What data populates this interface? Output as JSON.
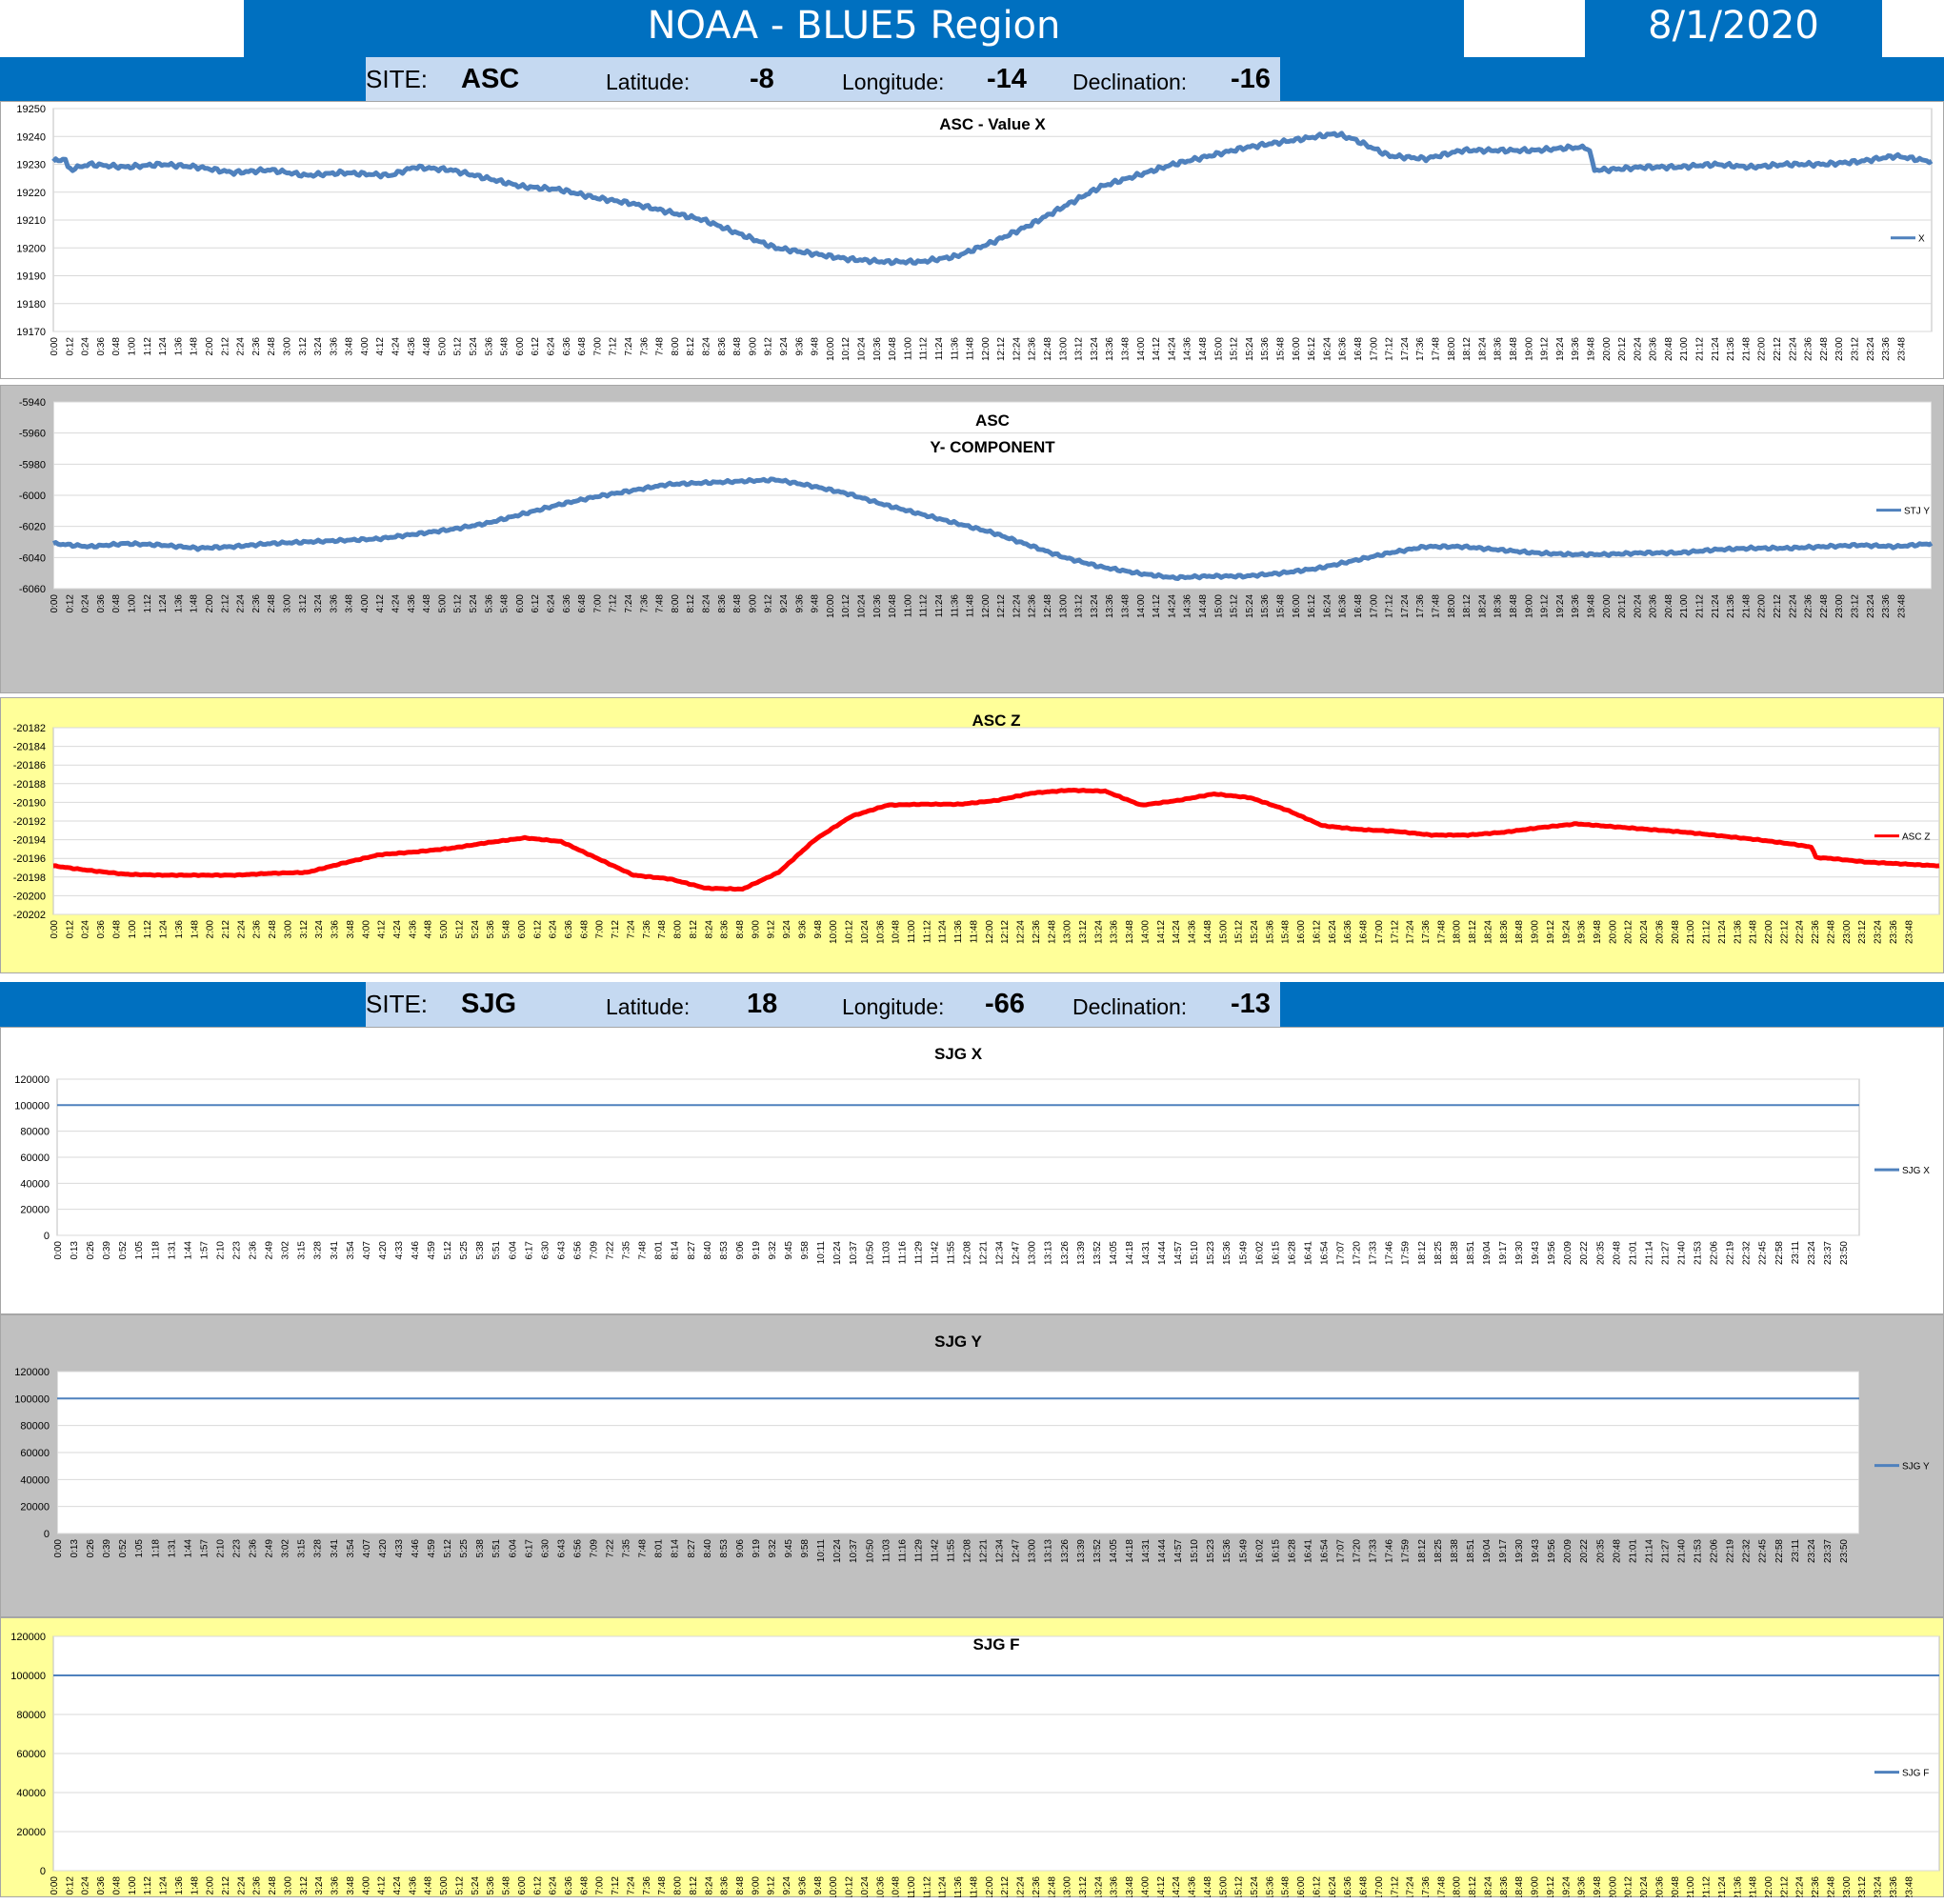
{
  "header": {
    "title": "NOAA - BLUE5 Region",
    "date": "8/1/2020"
  },
  "colors": {
    "header_blue": "#0070C0",
    "site_box": "#C5D9F1",
    "series_blue": "#4F81BD",
    "series_red": "#FF0000",
    "panel_gray": "#C0C0C0",
    "panel_yellow": "#FFFF99"
  },
  "sites": [
    {
      "site_label": "SITE:",
      "site": "ASC",
      "lat_label": "Latitude:",
      "lat": "-8",
      "lon_label": "Longitude:",
      "lon": "-14",
      "dec_label": "Declination:",
      "dec": "-16"
    },
    {
      "site_label": "SITE:",
      "site": "SJG",
      "lat_label": "Latitude:",
      "lat": "18",
      "lon_label": "Longitude:",
      "lon": "-66",
      "dec_label": "Declination:",
      "dec": "-13"
    }
  ],
  "chart_data": [
    {
      "type": "line",
      "title": "ASC - Value X",
      "legend": "X",
      "color": "#4F81BD",
      "ylim": [
        19170,
        19250
      ],
      "yticks": [
        19250,
        19240,
        19230,
        19220,
        19210,
        19200,
        19190,
        19180,
        19170
      ],
      "x_start_min": 0,
      "x_step_min": 12,
      "keypoints": [
        [
          0,
          19231
        ],
        [
          20,
          19232
        ],
        [
          25,
          19228
        ],
        [
          60,
          19230
        ],
        [
          120,
          19229
        ],
        [
          180,
          19230
        ],
        [
          240,
          19229
        ],
        [
          300,
          19227
        ],
        [
          360,
          19228
        ],
        [
          420,
          19226
        ],
        [
          480,
          19227
        ],
        [
          560,
          19226
        ],
        [
          600,
          19229
        ],
        [
          660,
          19228
        ],
        [
          720,
          19225
        ],
        [
          780,
          19222
        ],
        [
          840,
          19221
        ],
        [
          900,
          19218
        ],
        [
          960,
          19216
        ],
        [
          1020,
          19213
        ],
        [
          1080,
          19210
        ],
        [
          1140,
          19205
        ],
        [
          1200,
          19200
        ],
        [
          1260,
          19198
        ],
        [
          1320,
          19196
        ],
        [
          1380,
          19195
        ],
        [
          1440,
          19195
        ],
        [
          1500,
          19197
        ],
        [
          1560,
          19202
        ],
        [
          1620,
          19208
        ],
        [
          1680,
          19215
        ],
        [
          1740,
          19222
        ],
        [
          1800,
          19226
        ],
        [
          1860,
          19230
        ],
        [
          1920,
          19233
        ],
        [
          1980,
          19236
        ],
        [
          2040,
          19238
        ],
        [
          2100,
          19240
        ],
        [
          2130,
          19241
        ],
        [
          2160,
          19239
        ],
        [
          2190,
          19236
        ],
        [
          2220,
          19233
        ],
        [
          2280,
          19232
        ],
        [
          2340,
          19235
        ],
        [
          2400,
          19235
        ],
        [
          2460,
          19235
        ],
        [
          2520,
          19236
        ],
        [
          2550,
          19236
        ],
        [
          2560,
          19228
        ],
        [
          2580,
          19228
        ],
        [
          2640,
          19229
        ],
        [
          2700,
          19229
        ],
        [
          2760,
          19230
        ],
        [
          2820,
          19229
        ],
        [
          2880,
          19230
        ],
        [
          2940,
          19230
        ],
        [
          3000,
          19231
        ],
        [
          3060,
          19233
        ],
        [
          3120,
          19231
        ]
      ]
    },
    {
      "type": "line",
      "title": "ASC",
      "subtitle": "Y- COMPONENT",
      "legend": "STJ Y",
      "color": "#4F81BD",
      "ylim": [
        -6060,
        -5940
      ],
      "yticks": [
        -5940,
        -5960,
        -5980,
        -6000,
        -6020,
        -6040,
        -6060
      ],
      "x_start_min": 0,
      "x_step_min": 12,
      "keypoints": [
        [
          0,
          -6031
        ],
        [
          60,
          -6033
        ],
        [
          120,
          -6031
        ],
        [
          180,
          -6032
        ],
        [
          240,
          -6034
        ],
        [
          300,
          -6033
        ],
        [
          360,
          -6031
        ],
        [
          420,
          -6030
        ],
        [
          480,
          -6029
        ],
        [
          540,
          -6028
        ],
        [
          600,
          -6025
        ],
        [
          660,
          -6022
        ],
        [
          720,
          -6018
        ],
        [
          780,
          -6012
        ],
        [
          840,
          -6006
        ],
        [
          900,
          -6001
        ],
        [
          960,
          -5997
        ],
        [
          1020,
          -5993
        ],
        [
          1080,
          -5992
        ],
        [
          1140,
          -5991
        ],
        [
          1200,
          -5990
        ],
        [
          1260,
          -5994
        ],
        [
          1320,
          -5999
        ],
        [
          1380,
          -6006
        ],
        [
          1440,
          -6012
        ],
        [
          1500,
          -6018
        ],
        [
          1560,
          -6024
        ],
        [
          1620,
          -6032
        ],
        [
          1680,
          -6040
        ],
        [
          1740,
          -6046
        ],
        [
          1800,
          -6050
        ],
        [
          1860,
          -6053
        ],
        [
          1920,
          -6052
        ],
        [
          1980,
          -6052
        ],
        [
          2040,
          -6050
        ],
        [
          2100,
          -6047
        ],
        [
          2160,
          -6042
        ],
        [
          2220,
          -6037
        ],
        [
          2280,
          -6033
        ],
        [
          2340,
          -6033
        ],
        [
          2400,
          -6035
        ],
        [
          2460,
          -6037
        ],
        [
          2520,
          -6038
        ],
        [
          2580,
          -6038
        ],
        [
          2640,
          -6037
        ],
        [
          2700,
          -6037
        ],
        [
          2760,
          -6035
        ],
        [
          2820,
          -6034
        ],
        [
          2880,
          -6034
        ],
        [
          2940,
          -6033
        ],
        [
          3000,
          -6032
        ],
        [
          3060,
          -6033
        ],
        [
          3120,
          -6031
        ]
      ]
    },
    {
      "type": "line",
      "title": "ASC Z",
      "legend": "ASC Z",
      "color": "#FF0000",
      "ylim": [
        -20202,
        -20182
      ],
      "yticks": [
        -20182,
        -20184,
        -20186,
        -20188,
        -20190,
        -20192,
        -20194,
        -20196,
        -20198,
        -20200,
        -20202
      ],
      "x_start_min": 0,
      "x_step_min": 12,
      "keypoints": [
        [
          0,
          -20196.8
        ],
        [
          60,
          -20197.3
        ],
        [
          120,
          -20197.7
        ],
        [
          180,
          -20197.8
        ],
        [
          240,
          -20197.8
        ],
        [
          300,
          -20197.8
        ],
        [
          360,
          -20197.6
        ],
        [
          420,
          -20197.5
        ],
        [
          480,
          -20196.5
        ],
        [
          540,
          -20195.6
        ],
        [
          600,
          -20195.3
        ],
        [
          660,
          -20194.9
        ],
        [
          720,
          -20194.3
        ],
        [
          780,
          -20193.8
        ],
        [
          840,
          -20194.2
        ],
        [
          900,
          -20196
        ],
        [
          960,
          -20197.8
        ],
        [
          1020,
          -20198.2
        ],
        [
          1080,
          -20199.2
        ],
        [
          1140,
          -20199.3
        ],
        [
          1200,
          -20197.5
        ],
        [
          1260,
          -20194
        ],
        [
          1320,
          -20191.5
        ],
        [
          1380,
          -20190.3
        ],
        [
          1440,
          -20190.2
        ],
        [
          1500,
          -20190.2
        ],
        [
          1560,
          -20189.8
        ],
        [
          1620,
          -20189
        ],
        [
          1680,
          -20188.7
        ],
        [
          1740,
          -20188.8
        ],
        [
          1800,
          -20190.3
        ],
        [
          1860,
          -20189.8
        ],
        [
          1920,
          -20189.1
        ],
        [
          1980,
          -20189.5
        ],
        [
          2040,
          -20190.8
        ],
        [
          2100,
          -20192.5
        ],
        [
          2160,
          -20192.9
        ],
        [
          2220,
          -20193.1
        ],
        [
          2280,
          -20193.5
        ],
        [
          2340,
          -20193.5
        ],
        [
          2400,
          -20193.2
        ],
        [
          2460,
          -20192.7
        ],
        [
          2520,
          -20192.3
        ],
        [
          2580,
          -20192.6
        ],
        [
          2640,
          -20192.9
        ],
        [
          2700,
          -20193.2
        ],
        [
          2760,
          -20193.6
        ],
        [
          2820,
          -20194
        ],
        [
          2880,
          -20194.5
        ],
        [
          2910,
          -20194.8
        ],
        [
          2915,
          -20195.9
        ],
        [
          2940,
          -20196
        ],
        [
          3000,
          -20196.4
        ],
        [
          3060,
          -20196.6
        ],
        [
          3120,
          -20196.8
        ]
      ]
    },
    {
      "type": "line",
      "title": "SJG X",
      "legend": "SJG X",
      "color": "#4F81BD",
      "ylim": [
        0,
        120000
      ],
      "yticks": [
        120000,
        100000,
        80000,
        60000,
        40000,
        20000,
        0
      ],
      "x_start_min": 0,
      "x_step_min": 13,
      "keypoints": [
        [
          0,
          100000
        ],
        [
          3120,
          100000
        ]
      ]
    },
    {
      "type": "line",
      "title": "SJG Y",
      "legend": "SJG Y",
      "color": "#4F81BD",
      "ylim": [
        0,
        120000
      ],
      "yticks": [
        120000,
        100000,
        80000,
        60000,
        40000,
        20000,
        0
      ],
      "x_start_min": 0,
      "x_step_min": 13,
      "keypoints": [
        [
          0,
          100000
        ],
        [
          3120,
          100000
        ]
      ]
    },
    {
      "type": "line",
      "title": "SJG F",
      "legend": "SJG F",
      "color": "#4F81BD",
      "ylim": [
        0,
        120000
      ],
      "yticks": [
        120000,
        100000,
        80000,
        60000,
        40000,
        20000,
        0
      ],
      "x_start_min": 0,
      "x_step_min": 12,
      "keypoints": [
        [
          0,
          100000
        ],
        [
          3120,
          100000
        ]
      ]
    }
  ]
}
